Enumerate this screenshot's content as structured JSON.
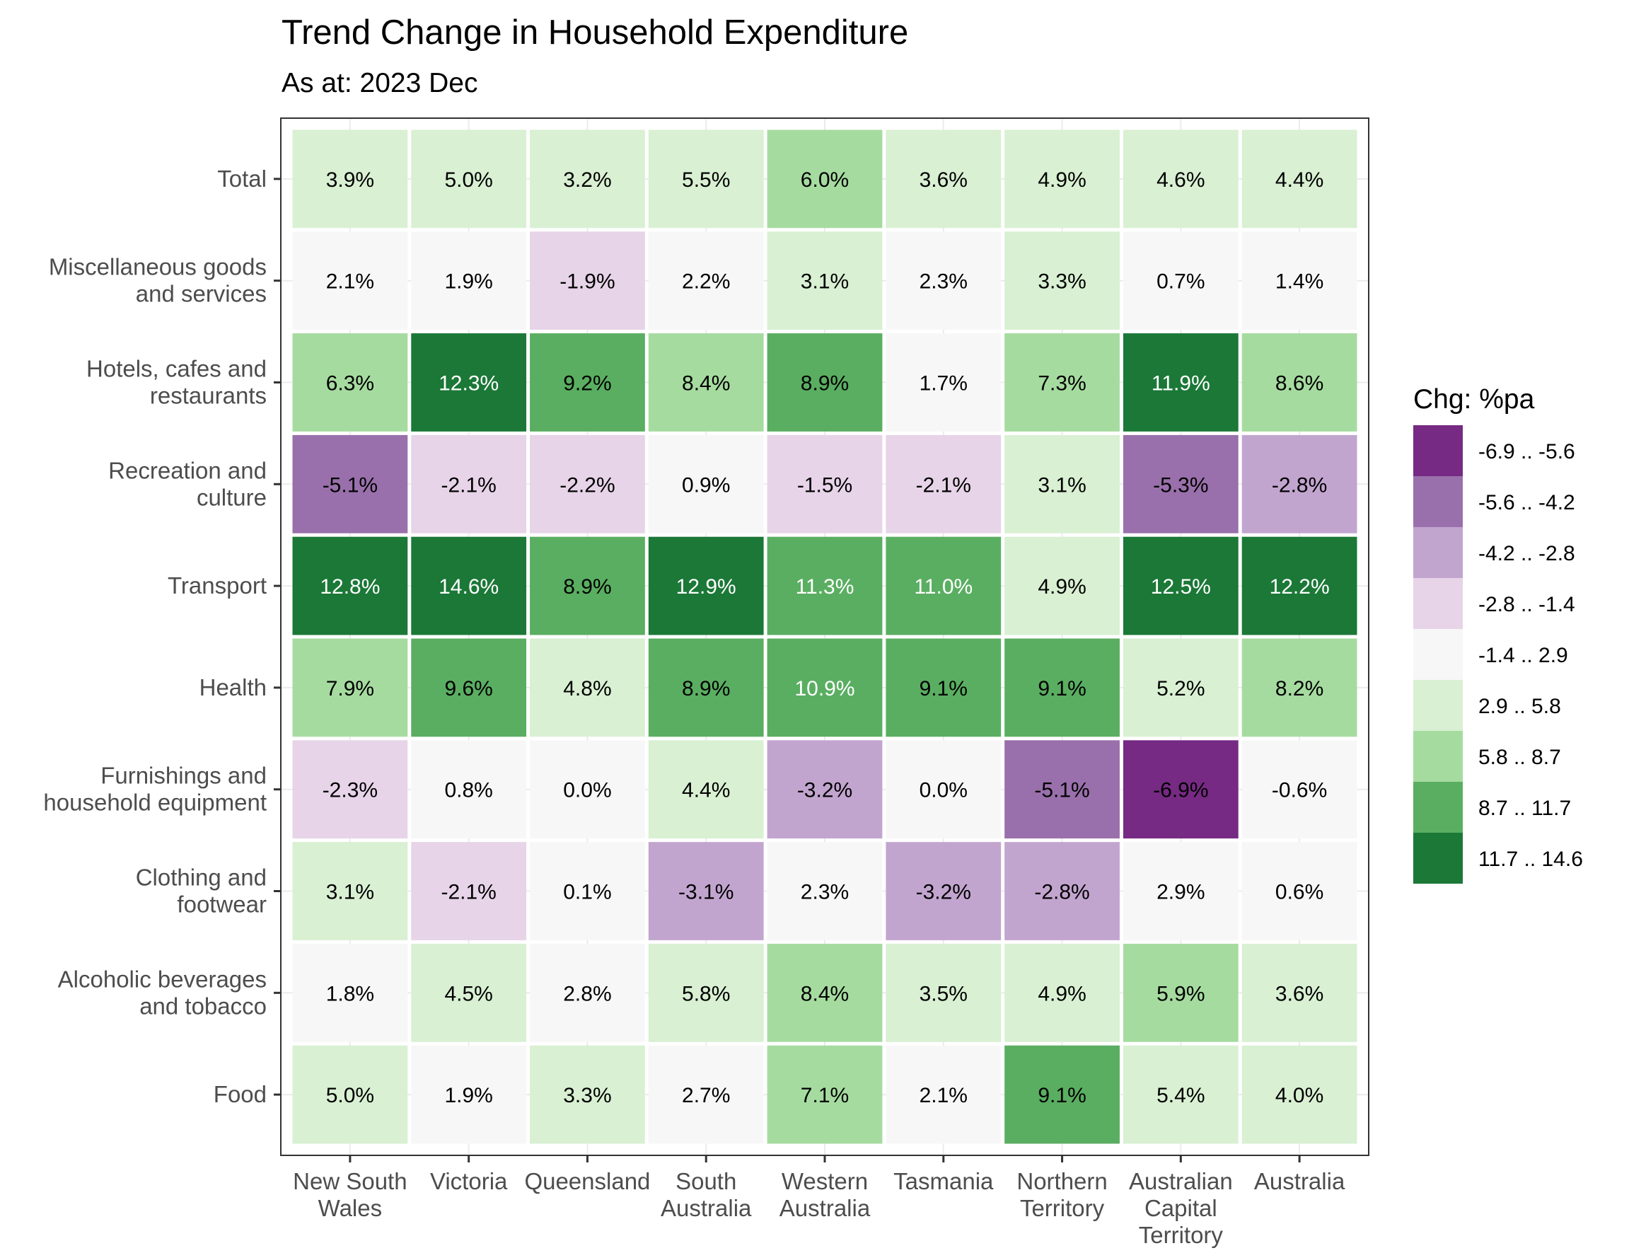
{
  "chart_data": {
    "type": "heatmap",
    "title": "Trend Change in Household Expenditure",
    "subtitle": "As at: 2023 Dec",
    "x_categories": [
      [
        "New South",
        "Wales"
      ],
      [
        "Victoria"
      ],
      [
        "Queensland"
      ],
      [
        "South",
        "Australia"
      ],
      [
        "Western",
        "Australia"
      ],
      [
        "Tasmania"
      ],
      [
        "Northern",
        "Territory"
      ],
      [
        "Australian",
        "Capital",
        "Territory"
      ],
      [
        "Australia"
      ]
    ],
    "y_categories": [
      [
        "Total"
      ],
      [
        "Miscellaneous goods",
        "and services"
      ],
      [
        "Hotels, cafes and",
        "restaurants"
      ],
      [
        "Recreation and",
        "culture"
      ],
      [
        "Transport"
      ],
      [
        "Health"
      ],
      [
        "Furnishings and",
        "household equipment"
      ],
      [
        "Clothing and",
        "footwear"
      ],
      [
        "Alcoholic beverages",
        "and tobacco"
      ],
      [
        "Food"
      ]
    ],
    "values": [
      [
        3.9,
        5.0,
        3.2,
        5.5,
        6.0,
        3.6,
        4.9,
        4.6,
        4.4
      ],
      [
        2.1,
        1.9,
        -1.9,
        2.2,
        3.1,
        2.3,
        3.3,
        0.7,
        1.4
      ],
      [
        6.3,
        12.3,
        9.2,
        8.4,
        8.9,
        1.7,
        7.3,
        11.9,
        8.6
      ],
      [
        -5.1,
        -2.1,
        -2.2,
        0.9,
        -1.5,
        -2.1,
        3.1,
        -5.3,
        -2.8
      ],
      [
        12.8,
        14.6,
        8.9,
        12.9,
        11.3,
        11.0,
        4.9,
        12.5,
        12.2
      ],
      [
        7.9,
        9.6,
        4.8,
        8.9,
        10.9,
        9.1,
        9.1,
        5.2,
        8.2
      ],
      [
        -2.3,
        0.8,
        0.0,
        4.4,
        -3.2,
        0.0,
        -5.1,
        -6.9,
        -0.6
      ],
      [
        3.1,
        -2.1,
        0.1,
        -3.1,
        2.3,
        -3.2,
        -2.8,
        2.9,
        0.6
      ],
      [
        1.8,
        4.5,
        2.8,
        5.8,
        8.4,
        3.5,
        4.9,
        5.9,
        3.6
      ],
      [
        5.0,
        1.9,
        3.3,
        2.7,
        7.1,
        2.1,
        9.1,
        5.4,
        4.0
      ]
    ],
    "cell_labels": [
      [
        "3.9%",
        "5.0%",
        "3.2%",
        "5.5%",
        "6.0%",
        "3.6%",
        "4.9%",
        "4.6%",
        "4.4%"
      ],
      [
        "2.1%",
        "1.9%",
        "-1.9%",
        "2.2%",
        "3.1%",
        "2.3%",
        "3.3%",
        "0.7%",
        "1.4%"
      ],
      [
        "6.3%",
        "12.3%",
        "9.2%",
        "8.4%",
        "8.9%",
        "1.7%",
        "7.3%",
        "11.9%",
        "8.6%"
      ],
      [
        "-5.1%",
        "-2.1%",
        "-2.2%",
        "0.9%",
        "-1.5%",
        "-2.1%",
        "3.1%",
        "-5.3%",
        "-2.8%"
      ],
      [
        "12.8%",
        "14.6%",
        "8.9%",
        "12.9%",
        "11.3%",
        "11.0%",
        "4.9%",
        "12.5%",
        "12.2%"
      ],
      [
        "7.9%",
        "9.6%",
        "4.8%",
        "8.9%",
        "10.9%",
        "9.1%",
        "9.1%",
        "5.2%",
        "8.2%"
      ],
      [
        "-2.3%",
        "0.8%",
        "0.0%",
        "4.4%",
        "-3.2%",
        "0.0%",
        "-5.1%",
        "-6.9%",
        "-0.6%"
      ],
      [
        "3.1%",
        "-2.1%",
        "0.1%",
        "-3.1%",
        "2.3%",
        "-3.2%",
        "-2.8%",
        "2.9%",
        "0.6%"
      ],
      [
        "1.8%",
        "4.5%",
        "2.8%",
        "5.8%",
        "8.4%",
        "3.5%",
        "4.9%",
        "5.9%",
        "3.6%"
      ],
      [
        "5.0%",
        "1.9%",
        "3.3%",
        "2.7%",
        "7.1%",
        "2.1%",
        "9.1%",
        "5.4%",
        "4.0%"
      ]
    ],
    "legend": {
      "title": "Chg: %pa",
      "placement": "right",
      "bins": [
        {
          "label": "-6.9 .. -5.6",
          "min": -6.9,
          "max": -5.6,
          "color": "#762a83"
        },
        {
          "label": "-5.6 .. -4.2",
          "min": -5.6,
          "max": -4.2,
          "color": "#9970ab"
        },
        {
          "label": "-4.2 .. -2.8",
          "min": -4.2,
          "max": -2.8,
          "color": "#c2a5cf"
        },
        {
          "label": "-2.8 .. -1.4",
          "min": -2.8,
          "max": -1.4,
          "color": "#e7d4e8"
        },
        {
          "label": "-1.4 .. 2.9",
          "min": -1.4,
          "max": 2.9,
          "color": "#f7f7f7"
        },
        {
          "label": "2.9 .. 5.8",
          "min": 2.9,
          "max": 5.8,
          "color": "#d9f0d3"
        },
        {
          "label": "5.8 .. 8.7",
          "min": 5.8,
          "max": 8.7,
          "color": "#a6dba0"
        },
        {
          "label": "8.7 .. 11.7",
          "min": 8.7,
          "max": 11.7,
          "color": "#5aae61"
        },
        {
          "label": "11.7 .. 14.6",
          "min": 11.7,
          "max": 14.6,
          "color": "#1b7837"
        }
      ]
    },
    "cell_bins": [
      [
        5,
        5,
        5,
        5,
        6,
        5,
        5,
        5,
        5
      ],
      [
        4,
        4,
        3,
        4,
        5,
        4,
        5,
        4,
        4
      ],
      [
        6,
        8,
        7,
        6,
        7,
        4,
        6,
        8,
        6
      ],
      [
        1,
        3,
        3,
        4,
        3,
        3,
        5,
        1,
        2
      ],
      [
        8,
        8,
        7,
        8,
        7,
        7,
        5,
        8,
        8
      ],
      [
        6,
        7,
        5,
        7,
        7,
        7,
        7,
        5,
        6
      ],
      [
        3,
        4,
        4,
        5,
        2,
        4,
        1,
        0,
        4
      ],
      [
        5,
        3,
        4,
        2,
        4,
        2,
        2,
        4,
        4
      ],
      [
        4,
        5,
        4,
        5,
        6,
        5,
        5,
        6,
        5
      ],
      [
        5,
        4,
        5,
        4,
        6,
        4,
        7,
        5,
        5
      ]
    ],
    "grid": true
  }
}
